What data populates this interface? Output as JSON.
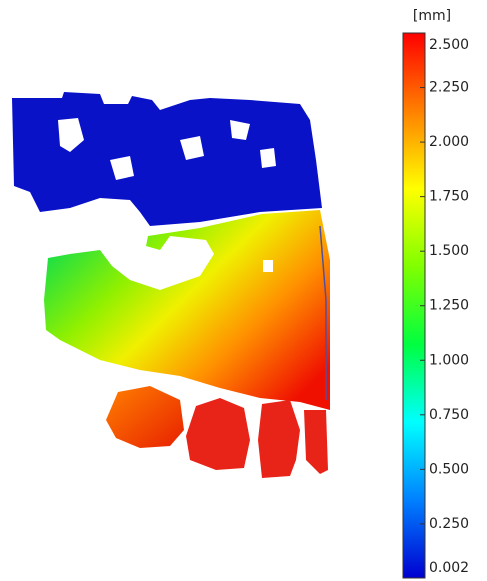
{
  "chart_data": {
    "type": "colormap",
    "unit_label": "[mm]",
    "clim": [
      0.002,
      2.5
    ],
    "colors": [
      "#0000d0",
      "#0080ff",
      "#00ffff",
      "#00ff40",
      "#80ff00",
      "#ffff00",
      "#ff8000",
      "#ff0000"
    ],
    "ticks": [
      {
        "value": 2.5,
        "label": "2.500"
      },
      {
        "value": 2.25,
        "label": "2.250"
      },
      {
        "value": 2.0,
        "label": "2.000"
      },
      {
        "value": 1.75,
        "label": "1.750"
      },
      {
        "value": 1.5,
        "label": "1.500"
      },
      {
        "value": 1.25,
        "label": "1.250"
      },
      {
        "value": 1.0,
        "label": "1.000"
      },
      {
        "value": 0.75,
        "label": "0.750"
      },
      {
        "value": 0.5,
        "label": "0.500"
      },
      {
        "value": 0.25,
        "label": "0.250"
      },
      {
        "value": 0.002,
        "label": "0.002"
      }
    ]
  }
}
